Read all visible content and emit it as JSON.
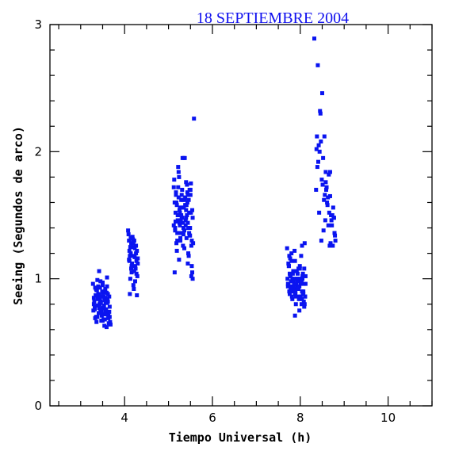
{
  "chart_data": {
    "type": "scatter",
    "title": "18 SEPTIEMBRE 2004",
    "title_color": "#1010ee",
    "xlabel": "Tiempo Universal (h)",
    "ylabel": "Seeing (Segundos de arco)",
    "xlim": [
      2.3,
      11.0
    ],
    "ylim": [
      0,
      3
    ],
    "xticks": [
      4,
      6,
      8,
      10
    ],
    "yticks": [
      0,
      1,
      2,
      3
    ],
    "xtick_labels": [
      "4",
      "6",
      "8",
      "10"
    ],
    "ytick_labels": [
      "0",
      "1",
      "2",
      "3"
    ],
    "grid": false,
    "marker_color": "#0a14f0",
    "series": [
      {
        "x": [
          3.28,
          3.3,
          3.32,
          3.35,
          3.38,
          3.4,
          3.42,
          3.45,
          3.48,
          3.5,
          3.52,
          3.55,
          3.58,
          3.6,
          3.62,
          3.65,
          3.68,
          3.3,
          3.33,
          3.36,
          3.39,
          3.42,
          3.45,
          3.48,
          3.51,
          3.54,
          3.57,
          3.6,
          3.63,
          3.66,
          3.29,
          3.34,
          3.37,
          3.41,
          3.44,
          3.47,
          3.5,
          3.53,
          3.56,
          3.59,
          3.62,
          3.65,
          3.31,
          3.35,
          3.4,
          3.46,
          3.52,
          3.58,
          3.64,
          3.43,
          3.49,
          3.55,
          3.61,
          3.38,
          3.47,
          3.56,
          3.33,
          3.42,
          3.51,
          3.6,
          3.67,
          3.36,
          3.45,
          3.54,
          3.63,
          3.39,
          3.48,
          3.57,
          3.66,
          3.44,
          3.53,
          3.62,
          3.41,
          3.5,
          3.59,
          3.32,
          3.46,
          3.55
        ],
        "y": [
          0.96,
          0.85,
          0.78,
          0.92,
          0.7,
          0.88,
          1.06,
          0.82,
          0.74,
          0.95,
          0.68,
          0.9,
          0.76,
          1.01,
          0.72,
          0.86,
          0.64,
          0.8,
          0.93,
          0.66,
          0.84,
          0.77,
          0.98,
          0.71,
          0.89,
          0.63,
          0.81,
          0.94,
          0.69,
          0.78,
          0.75,
          0.87,
          0.91,
          0.73,
          0.83,
          0.67,
          0.97,
          0.79,
          0.85,
          0.62,
          0.88,
          0.74,
          0.82,
          0.7,
          0.94,
          0.76,
          0.86,
          0.72,
          0.65,
          0.8,
          0.9,
          0.68,
          0.84,
          0.99,
          0.73,
          0.92,
          0.69,
          0.87,
          0.77,
          0.81,
          0.66,
          0.91,
          0.75,
          0.83,
          0.71,
          0.79,
          0.86,
          0.74,
          0.7,
          0.93,
          0.78,
          0.82,
          0.85,
          0.67,
          0.89,
          0.76,
          0.81,
          0.72
        ]
      },
      {
        "x": [
          4.08,
          4.1,
          4.12,
          4.14,
          4.16,
          4.18,
          4.2,
          4.22,
          4.24,
          4.26,
          4.28,
          4.3,
          4.09,
          4.11,
          4.13,
          4.15,
          4.17,
          4.19,
          4.21,
          4.23,
          4.25,
          4.27,
          4.29,
          4.1,
          4.14,
          4.18,
          4.22,
          4.26,
          4.3,
          4.12,
          4.16,
          4.2,
          4.24,
          4.28,
          4.11,
          4.15,
          4.19,
          4.23,
          4.27,
          4.13
        ],
        "y": [
          1.38,
          1.15,
          0.88,
          1.32,
          1.05,
          1.25,
          0.95,
          1.3,
          1.1,
          1.2,
          0.87,
          1.16,
          1.35,
          1.22,
          1.0,
          1.28,
          1.12,
          1.18,
          0.92,
          1.24,
          1.08,
          1.14,
          1.02,
          1.3,
          1.2,
          1.33,
          1.06,
          1.26,
          1.12,
          1.18,
          1.1,
          1.28,
          0.98,
          1.22,
          1.14,
          1.08,
          1.31,
          1.17,
          1.04,
          1.25
        ]
      },
      {
        "x": [
          5.12,
          5.14,
          5.16,
          5.18,
          5.2,
          5.22,
          5.24,
          5.26,
          5.28,
          5.3,
          5.32,
          5.34,
          5.36,
          5.38,
          5.4,
          5.42,
          5.44,
          5.46,
          5.48,
          5.5,
          5.52,
          5.54,
          5.56,
          5.13,
          5.15,
          5.17,
          5.19,
          5.21,
          5.23,
          5.25,
          5.27,
          5.29,
          5.31,
          5.33,
          5.35,
          5.37,
          5.39,
          5.41,
          5.43,
          5.45,
          5.47,
          5.49,
          5.51,
          5.53,
          5.55,
          5.14,
          5.18,
          5.22,
          5.26,
          5.3,
          5.34,
          5.38,
          5.42,
          5.46,
          5.5,
          5.54,
          5.16,
          5.2,
          5.24,
          5.28,
          5.32,
          5.36,
          5.4,
          5.44,
          5.48,
          5.52,
          5.15,
          5.19,
          5.23,
          5.27,
          5.31,
          5.35,
          5.39,
          5.43,
          5.47,
          5.51,
          5.55,
          5.17,
          5.25,
          5.33,
          5.41,
          5.49,
          5.21,
          5.29,
          5.37,
          5.45,
          5.53,
          5.58,
          5.35,
          5.4,
          5.3,
          5.26,
          5.44,
          5.12
        ],
        "y": [
          1.72,
          1.05,
          1.45,
          1.6,
          1.3,
          1.88,
          1.15,
          1.52,
          1.36,
          1.66,
          1.95,
          1.4,
          1.24,
          1.58,
          1.48,
          1.74,
          1.12,
          1.62,
          1.34,
          1.7,
          1.02,
          1.54,
          1.28,
          1.78,
          1.38,
          1.66,
          1.22,
          1.5,
          1.84,
          1.44,
          1.3,
          1.62,
          1.7,
          1.26,
          1.56,
          1.95,
          1.46,
          1.32,
          1.68,
          1.2,
          1.52,
          1.4,
          1.75,
          1.1,
          1.48,
          1.6,
          1.28,
          1.72,
          1.42,
          1.56,
          1.35,
          1.64,
          1.5,
          1.18,
          1.66,
          1.05,
          1.52,
          1.36,
          1.8,
          1.46,
          1.62,
          1.38,
          1.54,
          1.44,
          1.7,
          1.26,
          1.4,
          1.58,
          1.64,
          1.32,
          1.48,
          1.56,
          1.42,
          1.6,
          1.36,
          1.52,
          1.0,
          1.68,
          1.54,
          1.44,
          1.58,
          1.34,
          1.46,
          1.5,
          1.62,
          1.4,
          1.3,
          2.26,
          1.95,
          1.76,
          1.48,
          1.56,
          1.66,
          1.42
        ]
      },
      {
        "x": [
          7.7,
          7.72,
          7.74,
          7.76,
          7.78,
          7.8,
          7.82,
          7.84,
          7.86,
          7.88,
          7.9,
          7.92,
          7.94,
          7.96,
          7.98,
          8.0,
          8.02,
          8.04,
          8.06,
          8.08,
          8.1,
          8.12,
          7.71,
          7.73,
          7.75,
          7.77,
          7.79,
          7.81,
          7.83,
          7.85,
          7.87,
          7.89,
          7.91,
          7.93,
          7.95,
          7.97,
          7.99,
          8.01,
          8.03,
          8.05,
          8.07,
          8.09,
          8.11,
          7.72,
          7.76,
          7.8,
          7.84,
          7.88,
          7.92,
          7.96,
          8.0,
          8.04,
          8.08,
          8.12,
          7.74,
          7.78,
          7.82,
          7.86,
          7.9,
          7.94,
          7.98,
          8.02,
          8.06,
          8.1,
          7.73,
          7.77,
          7.81,
          7.85,
          7.89,
          7.93,
          7.97,
          8.01,
          8.05,
          8.09,
          7.75,
          7.83,
          7.91,
          7.99,
          8.07,
          7.79,
          7.87,
          7.95,
          8.03,
          8.11,
          7.88,
          7.98,
          8.04
        ],
        "y": [
          1.24,
          0.96,
          1.1,
          0.88,
          1.02,
          1.2,
          0.84,
          1.06,
          0.92,
          1.14,
          0.8,
          1.0,
          0.94,
          1.08,
          0.86,
          0.98,
          1.18,
          0.9,
          1.04,
          0.82,
          1.28,
          0.96,
          1.0,
          1.12,
          0.9,
          1.16,
          0.98,
          0.86,
          1.04,
          0.94,
          1.22,
          0.88,
          1.06,
          0.92,
          1.0,
          0.84,
          1.1,
          0.96,
          0.8,
          1.02,
          0.9,
          1.08,
          0.86,
          0.94,
          1.04,
          1.14,
          0.98,
          0.88,
          1.06,
          0.92,
          1.0,
          0.84,
          0.96,
          1.02,
          1.1,
          0.92,
          1.0,
          0.96,
          0.86,
          1.04,
          0.94,
          0.98,
          0.88,
          0.8,
          0.96,
          1.02,
          0.92,
          1.06,
          0.9,
          0.98,
          0.94,
          0.86,
          1.0,
          0.78,
          1.18,
          0.9,
          0.96,
          1.08,
          0.88,
          0.94,
          1.0,
          0.92,
          0.98,
          0.86,
          0.71,
          0.75,
          1.26
        ]
      },
      {
        "x": [
          8.32,
          8.4,
          8.5,
          8.45,
          8.38,
          8.42,
          8.47,
          8.52,
          8.55,
          8.58,
          8.6,
          8.62,
          8.65,
          8.68,
          8.7,
          8.72,
          8.75,
          8.78,
          8.8,
          8.36,
          8.41,
          8.46,
          8.51,
          8.56,
          8.61,
          8.66,
          8.71,
          8.76,
          8.39,
          8.44,
          8.49,
          8.54,
          8.59,
          8.64,
          8.69,
          8.74,
          8.79,
          8.43,
          8.53,
          8.63,
          8.73,
          8.48,
          8.58,
          8.68,
          8.77,
          8.57,
          8.67,
          8.37
        ],
        "y": [
          2.89,
          2.68,
          2.46,
          2.32,
          2.12,
          2.05,
          2.08,
          1.95,
          2.12,
          1.84,
          1.72,
          1.58,
          1.82,
          1.65,
          1.5,
          1.42,
          1.56,
          1.36,
          1.3,
          1.7,
          1.92,
          2.3,
          1.74,
          1.66,
          1.6,
          1.52,
          1.46,
          1.48,
          1.88,
          2.0,
          1.78,
          1.62,
          1.7,
          1.42,
          1.28,
          1.26,
          1.34,
          1.52,
          1.38,
          1.64,
          1.5,
          1.3,
          1.76,
          1.84,
          1.48,
          1.46,
          1.26,
          2.02
        ]
      }
    ]
  }
}
